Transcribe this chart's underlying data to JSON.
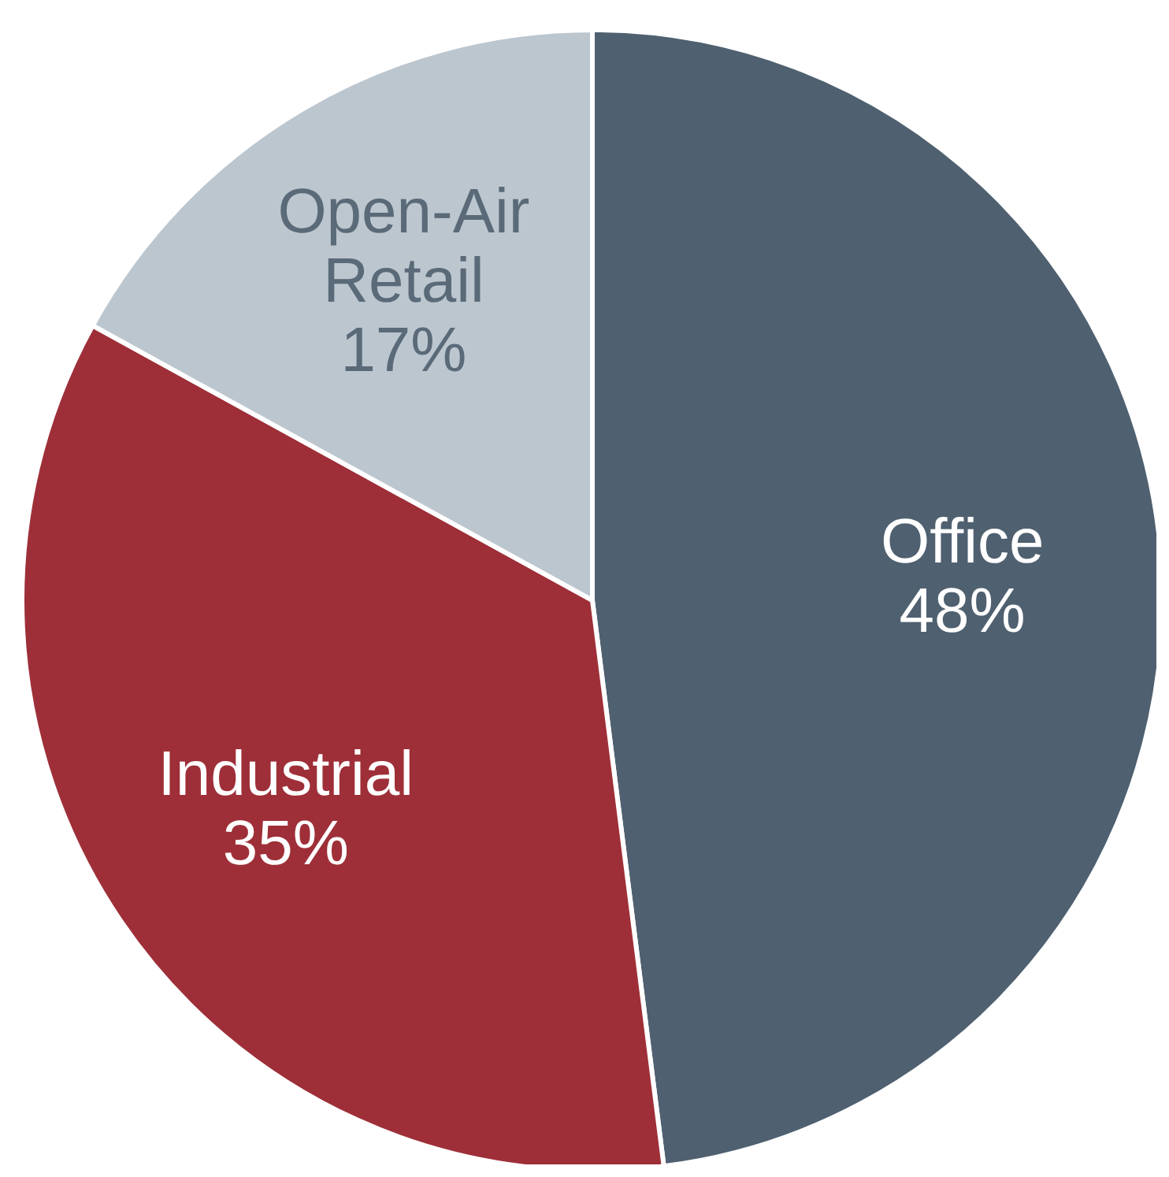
{
  "chart_data": {
    "type": "pie",
    "categories": [
      "Office",
      "Industrial",
      "Open-Air Retail"
    ],
    "values": [
      48,
      35,
      17
    ],
    "value_labels": [
      "48%",
      "35%",
      "17%"
    ],
    "colors": [
      "#4f6070",
      "#9e2f38",
      "#bcc6cf"
    ]
  }
}
